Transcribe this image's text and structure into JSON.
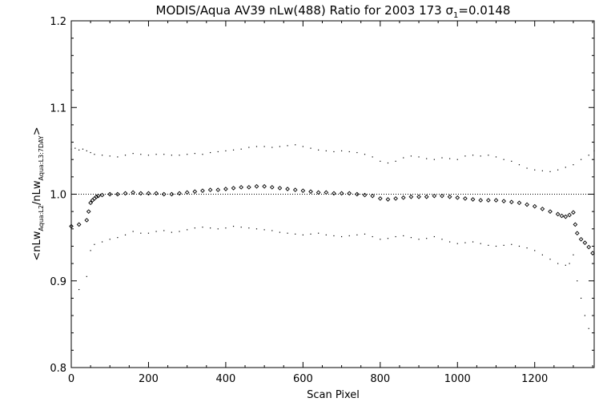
{
  "chart_data": {
    "type": "scatter",
    "title": "MODIS/Aqua AV39 nLw(488) Ratio for 2003 173 σ",
    "title_sub": "1",
    "title_suffix": "=0.0148",
    "xlabel": "Scan Pixel",
    "ylabel": {
      "prefix": "<nLw",
      "sub1": "Aqua:L2",
      "mid": "/nLw",
      "sub2": "Aqua:L3:7DAY",
      "suffix": ">"
    },
    "xlim": [
      0,
      1354
    ],
    "ylim": [
      0.8,
      1.2
    ],
    "xticks": [
      0,
      200,
      400,
      600,
      800,
      1000,
      1200
    ],
    "yticks": [
      0.8,
      0.9,
      1.0,
      1.1,
      1.2
    ],
    "ytick_labels": [
      "0.8",
      "0.9",
      "1.0",
      "1.1",
      "1.2"
    ],
    "reference_line": 1.0,
    "grid": false,
    "series": [
      {
        "marker": "diamond",
        "x": [
          0,
          20,
          40,
          45,
          50,
          55,
          60,
          65,
          70,
          80,
          100,
          120,
          140,
          160,
          180,
          200,
          220,
          240,
          260,
          280,
          300,
          320,
          340,
          360,
          380,
          400,
          420,
          440,
          460,
          480,
          500,
          520,
          540,
          560,
          580,
          600,
          620,
          640,
          660,
          680,
          700,
          720,
          740,
          760,
          780,
          800,
          820,
          840,
          860,
          880,
          900,
          920,
          940,
          960,
          980,
          1000,
          1020,
          1040,
          1060,
          1080,
          1100,
          1120,
          1140,
          1160,
          1180,
          1200,
          1220,
          1240,
          1260,
          1270,
          1280,
          1290,
          1300,
          1305,
          1310,
          1320,
          1330,
          1340,
          1350
        ],
        "y": [
          0.963,
          0.965,
          0.97,
          0.98,
          0.99,
          0.993,
          0.995,
          0.997,
          0.998,
          0.999,
          1.0,
          1.0,
          1.001,
          1.002,
          1.001,
          1.001,
          1.001,
          1.0,
          1.0,
          1.001,
          1.002,
          1.003,
          1.004,
          1.005,
          1.005,
          1.006,
          1.007,
          1.008,
          1.008,
          1.009,
          1.009,
          1.008,
          1.007,
          1.006,
          1.005,
          1.004,
          1.003,
          1.002,
          1.002,
          1.001,
          1.001,
          1.001,
          1.0,
          0.999,
          0.998,
          0.995,
          0.994,
          0.995,
          0.996,
          0.997,
          0.997,
          0.997,
          0.998,
          0.998,
          0.997,
          0.996,
          0.995,
          0.994,
          0.993,
          0.993,
          0.993,
          0.992,
          0.991,
          0.99,
          0.988,
          0.986,
          0.983,
          0.98,
          0.977,
          0.975,
          0.974,
          0.976,
          0.979,
          0.965,
          0.955,
          0.948,
          0.944,
          0.939,
          0.932
        ]
      },
      {
        "marker": "dot",
        "x": [
          0,
          10,
          20,
          30,
          40,
          50,
          60,
          80,
          100,
          120,
          140,
          160,
          180,
          200,
          220,
          240,
          260,
          280,
          300,
          320,
          340,
          360,
          380,
          400,
          420,
          440,
          460,
          480,
          500,
          520,
          540,
          560,
          580,
          600,
          620,
          640,
          660,
          680,
          700,
          720,
          740,
          760,
          780,
          800,
          820,
          840,
          860,
          880,
          900,
          920,
          940,
          960,
          980,
          1000,
          1020,
          1040,
          1060,
          1080,
          1100,
          1120,
          1140,
          1160,
          1180,
          1200,
          1220,
          1240,
          1260,
          1280,
          1300,
          1320,
          1340,
          1354
        ],
        "y": [
          1.052,
          1.053,
          1.051,
          1.052,
          1.05,
          1.048,
          1.046,
          1.045,
          1.044,
          1.043,
          1.045,
          1.047,
          1.046,
          1.045,
          1.046,
          1.046,
          1.045,
          1.045,
          1.046,
          1.047,
          1.046,
          1.048,
          1.049,
          1.05,
          1.051,
          1.052,
          1.054,
          1.055,
          1.055,
          1.054,
          1.055,
          1.056,
          1.057,
          1.055,
          1.053,
          1.051,
          1.05,
          1.049,
          1.05,
          1.049,
          1.048,
          1.046,
          1.043,
          1.038,
          1.036,
          1.038,
          1.042,
          1.044,
          1.043,
          1.041,
          1.04,
          1.042,
          1.041,
          1.04,
          1.044,
          1.045,
          1.044,
          1.045,
          1.043,
          1.04,
          1.038,
          1.034,
          1.03,
          1.028,
          1.027,
          1.026,
          1.028,
          1.031,
          1.034,
          1.04,
          1.045,
          1.05
        ]
      },
      {
        "marker": "dot",
        "x": [
          0,
          20,
          40,
          50,
          60,
          80,
          100,
          120,
          140,
          160,
          180,
          200,
          220,
          240,
          260,
          280,
          300,
          320,
          340,
          360,
          380,
          400,
          420,
          440,
          460,
          480,
          500,
          520,
          540,
          560,
          580,
          600,
          620,
          640,
          660,
          680,
          700,
          720,
          740,
          760,
          780,
          800,
          820,
          840,
          860,
          880,
          900,
          920,
          940,
          960,
          980,
          1000,
          1020,
          1040,
          1060,
          1080,
          1100,
          1120,
          1140,
          1160,
          1180,
          1200,
          1220,
          1240,
          1260,
          1280,
          1290,
          1300,
          1310,
          1320,
          1330,
          1340,
          1354
        ],
        "y": [
          0.88,
          0.89,
          0.905,
          0.935,
          0.942,
          0.945,
          0.948,
          0.95,
          0.953,
          0.957,
          0.955,
          0.955,
          0.957,
          0.958,
          0.956,
          0.957,
          0.959,
          0.961,
          0.962,
          0.961,
          0.96,
          0.961,
          0.963,
          0.962,
          0.961,
          0.96,
          0.959,
          0.958,
          0.956,
          0.955,
          0.954,
          0.953,
          0.954,
          0.955,
          0.953,
          0.952,
          0.951,
          0.952,
          0.953,
          0.954,
          0.951,
          0.948,
          0.949,
          0.951,
          0.952,
          0.95,
          0.948,
          0.949,
          0.951,
          0.948,
          0.945,
          0.943,
          0.944,
          0.945,
          0.943,
          0.941,
          0.94,
          0.941,
          0.942,
          0.94,
          0.938,
          0.935,
          0.93,
          0.925,
          0.92,
          0.918,
          0.92,
          0.93,
          0.9,
          0.88,
          0.86,
          0.845,
          0.84
        ]
      }
    ]
  }
}
